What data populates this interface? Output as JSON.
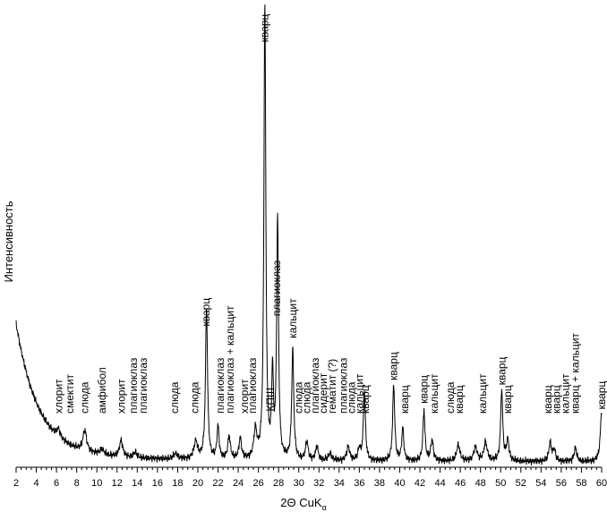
{
  "chart_data": {
    "type": "line",
    "title": "",
    "xlabel": "2Θ CuK",
    "xlabel_sub": "α",
    "ylabel": "Интенсивность",
    "xlim": [
      2,
      60
    ],
    "x_ticks": [
      2,
      4,
      6,
      8,
      10,
      12,
      14,
      16,
      18,
      20,
      22,
      24,
      26,
      28,
      30,
      32,
      34,
      36,
      38,
      40,
      42,
      44,
      46,
      48,
      50,
      52,
      54,
      56,
      58,
      60
    ],
    "y_units": "relative",
    "background": {
      "start": 0.28,
      "decay": 0.018,
      "tau": 2.2,
      "base": 0.012
    },
    "peaks": [
      {
        "x": 6.2,
        "h": 0.018,
        "w": 0.2
      },
      {
        "x": 8.8,
        "h": 0.045,
        "w": 0.22
      },
      {
        "x": 10.5,
        "h": 0.012,
        "w": 0.25
      },
      {
        "x": 12.4,
        "h": 0.035,
        "w": 0.2
      },
      {
        "x": 13.8,
        "h": 0.012,
        "w": 0.2
      },
      {
        "x": 17.8,
        "h": 0.012,
        "w": 0.25
      },
      {
        "x": 19.8,
        "h": 0.038,
        "w": 0.22
      },
      {
        "x": 20.86,
        "h": 0.33,
        "w": 0.12
      },
      {
        "x": 22.0,
        "h": 0.07,
        "w": 0.13
      },
      {
        "x": 23.1,
        "h": 0.05,
        "w": 0.15
      },
      {
        "x": 24.2,
        "h": 0.045,
        "w": 0.15
      },
      {
        "x": 25.7,
        "h": 0.06,
        "w": 0.18
      },
      {
        "x": 26.64,
        "h": 1.0,
        "w": 0.11
      },
      {
        "x": 27.4,
        "h": 0.18,
        "w": 0.1
      },
      {
        "x": 27.9,
        "h": 0.52,
        "w": 0.11
      },
      {
        "x": 29.4,
        "h": 0.24,
        "w": 0.12
      },
      {
        "x": 30.8,
        "h": 0.04,
        "w": 0.15
      },
      {
        "x": 31.8,
        "h": 0.03,
        "w": 0.15
      },
      {
        "x": 33.1,
        "h": 0.015,
        "w": 0.2
      },
      {
        "x": 34.9,
        "h": 0.03,
        "w": 0.18
      },
      {
        "x": 36.0,
        "h": 0.025,
        "w": 0.15
      },
      {
        "x": 36.5,
        "h": 0.15,
        "w": 0.12
      },
      {
        "x": 39.4,
        "h": 0.165,
        "w": 0.12
      },
      {
        "x": 40.3,
        "h": 0.07,
        "w": 0.12
      },
      {
        "x": 42.4,
        "h": 0.11,
        "w": 0.12
      },
      {
        "x": 43.2,
        "h": 0.045,
        "w": 0.15
      },
      {
        "x": 45.8,
        "h": 0.035,
        "w": 0.2
      },
      {
        "x": 47.5,
        "h": 0.03,
        "w": 0.2
      },
      {
        "x": 48.5,
        "h": 0.04,
        "w": 0.2
      },
      {
        "x": 50.1,
        "h": 0.155,
        "w": 0.12
      },
      {
        "x": 50.7,
        "h": 0.045,
        "w": 0.15
      },
      {
        "x": 54.9,
        "h": 0.04,
        "w": 0.15
      },
      {
        "x": 55.3,
        "h": 0.025,
        "w": 0.15
      },
      {
        "x": 57.4,
        "h": 0.03,
        "w": 0.15
      },
      {
        "x": 60.0,
        "h": 0.11,
        "w": 0.15
      }
    ],
    "annotations": [
      {
        "text": "хлорит",
        "x": 6.2
      },
      {
        "text": "смектит",
        "x": 7.3
      },
      {
        "text": "слюда",
        "x": 8.8
      },
      {
        "text": "амфибол",
        "x": 10.5
      },
      {
        "text": "хлорит",
        "x": 12.4
      },
      {
        "text": "плагиоклаз",
        "x": 13.6
      },
      {
        "text": "плагиоклаз",
        "x": 14.6
      },
      {
        "text": "слюда",
        "x": 17.7
      },
      {
        "text": "слюда",
        "x": 19.7
      },
      {
        "text": "кварц",
        "x": 20.8
      },
      {
        "text": "плагиоклаз",
        "x": 22.2
      },
      {
        "text": "плагиоклаз + кальцит",
        "x": 23.2
      },
      {
        "text": "хлорит",
        "x": 24.6
      },
      {
        "text": "плагиоклаз",
        "x": 25.4
      },
      {
        "text": "кварц",
        "x": 26.6
      },
      {
        "text": "КПШ",
        "x": 27.2
      },
      {
        "text": "плагиоклаз",
        "x": 27.8
      },
      {
        "text": "кальцит",
        "x": 29.4
      },
      {
        "text": "слюда",
        "x": 30.0
      },
      {
        "text": "слюда",
        "x": 30.8
      },
      {
        "text": "плагиоклаз",
        "x": 31.6
      },
      {
        "text": "сидерит",
        "x": 32.4
      },
      {
        "text": "гематит (?)",
        "x": 33.3
      },
      {
        "text": "плагиоклаз",
        "x": 34.4
      },
      {
        "text": "слюда",
        "x": 35.2
      },
      {
        "text": "кальцит",
        "x": 36.0
      },
      {
        "text": "кварц",
        "x": 36.6
      },
      {
        "text": "кварц",
        "x": 39.4
      },
      {
        "text": "кварц",
        "x": 40.5
      },
      {
        "text": "кварц",
        "x": 42.4
      },
      {
        "text": "кальцит",
        "x": 43.4
      },
      {
        "text": "слюда",
        "x": 45.0
      },
      {
        "text": "кварц",
        "x": 45.9
      },
      {
        "text": "кальцит",
        "x": 48.2
      },
      {
        "text": "кварц",
        "x": 50.1
      },
      {
        "text": "кварц",
        "x": 50.7
      },
      {
        "text": "кварц",
        "x": 54.7
      },
      {
        "text": "кварц",
        "x": 55.5
      },
      {
        "text": "кальцит",
        "x": 56.4
      },
      {
        "text": "кварц + кальцит",
        "x": 57.4
      },
      {
        "text": "кварц",
        "x": 60.0
      }
    ]
  }
}
